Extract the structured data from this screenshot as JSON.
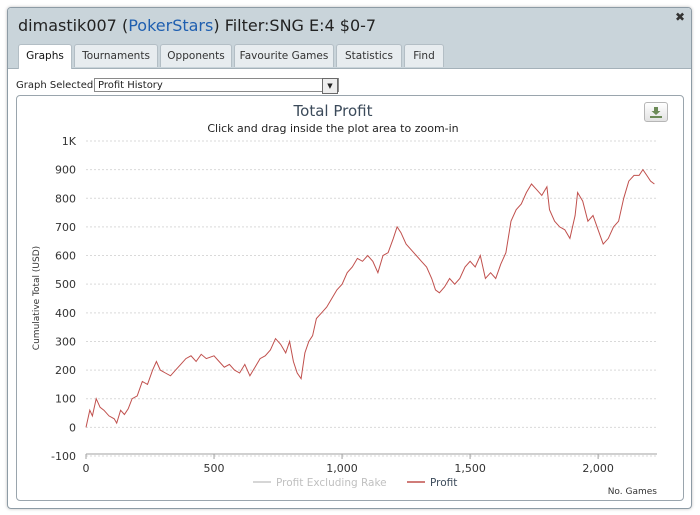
{
  "window": {
    "user": "dimastik007",
    "site": "PokerStars",
    "filter": "Filter:SNG E:4 $0-7",
    "open_paren": "(",
    "close_paren": ")",
    "close_symbol": "✖"
  },
  "tabs": [
    {
      "label": "Graphs",
      "active": true
    },
    {
      "label": "Tournaments"
    },
    {
      "label": "Opponents"
    },
    {
      "label": "Favourite Games"
    },
    {
      "label": "Statistics"
    },
    {
      "label": "Find"
    }
  ],
  "graph_selector": {
    "label": "Graph Selected:",
    "value": "Profit History"
  },
  "chart_data": {
    "type": "line",
    "title": "Total Profit",
    "subtitle": "Click and drag inside the plot area to zoom-in",
    "ylabel": "Cumulative Total (USD)",
    "xlabel": "No. Games",
    "ylim": [
      -100,
      1000
    ],
    "xlim": [
      0,
      2230
    ],
    "y_ticks": [
      -100,
      0,
      100,
      200,
      300,
      400,
      500,
      600,
      700,
      800,
      900,
      1000
    ],
    "y_tick_labels": [
      "-100",
      "0",
      "100",
      "200",
      "300",
      "400",
      "500",
      "600",
      "700",
      "800",
      "900",
      "1K"
    ],
    "x_ticks": [
      0,
      500,
      1000,
      1500,
      2000
    ],
    "x_tick_labels": [
      "0",
      "500",
      "1,000",
      "1,500",
      "2,000"
    ],
    "legend": [
      "Profit Excluding Rake",
      "Profit"
    ],
    "series": [
      {
        "name": "Profit",
        "color": "#c0504d",
        "points": [
          [
            0,
            0
          ],
          [
            15,
            60
          ],
          [
            25,
            40
          ],
          [
            40,
            100
          ],
          [
            55,
            70
          ],
          [
            70,
            60
          ],
          [
            90,
            40
          ],
          [
            110,
            30
          ],
          [
            120,
            15
          ],
          [
            135,
            60
          ],
          [
            150,
            45
          ],
          [
            165,
            65
          ],
          [
            180,
            100
          ],
          [
            200,
            110
          ],
          [
            220,
            160
          ],
          [
            240,
            150
          ],
          [
            260,
            200
          ],
          [
            275,
            230
          ],
          [
            290,
            200
          ],
          [
            310,
            190
          ],
          [
            330,
            180
          ],
          [
            350,
            200
          ],
          [
            370,
            220
          ],
          [
            390,
            240
          ],
          [
            410,
            250
          ],
          [
            430,
            230
          ],
          [
            450,
            255
          ],
          [
            470,
            240
          ],
          [
            500,
            250
          ],
          [
            520,
            230
          ],
          [
            540,
            210
          ],
          [
            560,
            220
          ],
          [
            580,
            200
          ],
          [
            600,
            190
          ],
          [
            620,
            220
          ],
          [
            640,
            180
          ],
          [
            660,
            210
          ],
          [
            680,
            240
          ],
          [
            700,
            250
          ],
          [
            720,
            270
          ],
          [
            740,
            310
          ],
          [
            760,
            290
          ],
          [
            780,
            260
          ],
          [
            795,
            300
          ],
          [
            810,
            230
          ],
          [
            825,
            190
          ],
          [
            840,
            170
          ],
          [
            855,
            260
          ],
          [
            870,
            300
          ],
          [
            885,
            320
          ],
          [
            900,
            380
          ],
          [
            920,
            400
          ],
          [
            940,
            420
          ],
          [
            960,
            450
          ],
          [
            980,
            480
          ],
          [
            1000,
            500
          ],
          [
            1020,
            540
          ],
          [
            1040,
            560
          ],
          [
            1060,
            590
          ],
          [
            1080,
            580
          ],
          [
            1100,
            600
          ],
          [
            1120,
            580
          ],
          [
            1140,
            540
          ],
          [
            1160,
            600
          ],
          [
            1180,
            610
          ],
          [
            1200,
            660
          ],
          [
            1215,
            700
          ],
          [
            1230,
            680
          ],
          [
            1250,
            640
          ],
          [
            1270,
            620
          ],
          [
            1290,
            600
          ],
          [
            1310,
            580
          ],
          [
            1330,
            560
          ],
          [
            1350,
            520
          ],
          [
            1365,
            480
          ],
          [
            1380,
            470
          ],
          [
            1400,
            490
          ],
          [
            1420,
            520
          ],
          [
            1440,
            500
          ],
          [
            1460,
            520
          ],
          [
            1480,
            560
          ],
          [
            1500,
            580
          ],
          [
            1520,
            560
          ],
          [
            1540,
            600
          ],
          [
            1560,
            520
          ],
          [
            1580,
            540
          ],
          [
            1600,
            520
          ],
          [
            1620,
            570
          ],
          [
            1640,
            610
          ],
          [
            1660,
            720
          ],
          [
            1680,
            760
          ],
          [
            1700,
            780
          ],
          [
            1720,
            820
          ],
          [
            1740,
            850
          ],
          [
            1760,
            830
          ],
          [
            1780,
            810
          ],
          [
            1800,
            840
          ],
          [
            1810,
            760
          ],
          [
            1830,
            720
          ],
          [
            1850,
            700
          ],
          [
            1870,
            690
          ],
          [
            1890,
            660
          ],
          [
            1910,
            740
          ],
          [
            1920,
            820
          ],
          [
            1940,
            790
          ],
          [
            1960,
            720
          ],
          [
            1980,
            740
          ],
          [
            2000,
            690
          ],
          [
            2020,
            640
          ],
          [
            2040,
            660
          ],
          [
            2060,
            700
          ],
          [
            2080,
            720
          ],
          [
            2100,
            800
          ],
          [
            2120,
            860
          ],
          [
            2140,
            880
          ],
          [
            2160,
            880
          ],
          [
            2175,
            900
          ],
          [
            2190,
            880
          ],
          [
            2205,
            860
          ],
          [
            2220,
            850
          ]
        ]
      }
    ]
  }
}
